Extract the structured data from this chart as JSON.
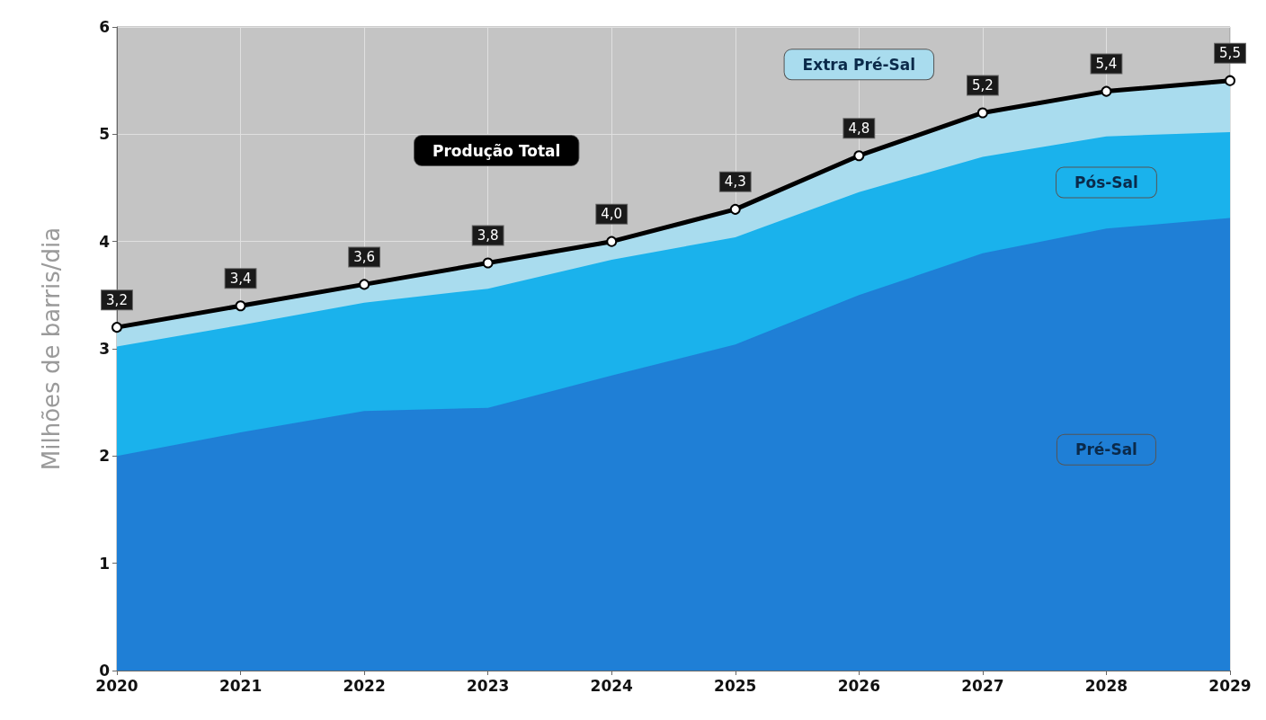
{
  "chart_data": {
    "type": "area",
    "ylabel": "Milhões de barris/dia",
    "categories": [
      "2020",
      "2021",
      "2022",
      "2023",
      "2024",
      "2025",
      "2026",
      "2027",
      "2028",
      "2029"
    ],
    "stacked": true,
    "ylim": [
      0,
      6
    ],
    "yticks": [
      0,
      1,
      2,
      3,
      4,
      5,
      6
    ],
    "grid": true,
    "legend": false,
    "series": [
      {
        "name": "Pré-Sal",
        "color": "#1f7fd6",
        "values": [
          2.0,
          2.22,
          2.42,
          2.45,
          2.75,
          3.04,
          3.5,
          3.89,
          4.12,
          4.22
        ]
      },
      {
        "name": "Pós-Sal",
        "color": "#1ab2ec",
        "values": [
          1.02,
          1.0,
          1.01,
          1.11,
          1.08,
          1.0,
          0.96,
          0.9,
          0.86,
          0.8
        ]
      },
      {
        "name": "Extra Pré-Sal",
        "color": "#a9dcee",
        "values": [
          0.18,
          0.18,
          0.17,
          0.24,
          0.17,
          0.26,
          0.34,
          0.41,
          0.42,
          0.48
        ]
      }
    ],
    "totals": [
      "3,2",
      "3,4",
      "3,6",
      "3,8",
      "4,0",
      "4,3",
      "4,8",
      "5,2",
      "5,4",
      "5,5"
    ],
    "annotations": [
      "Produção Total"
    ]
  }
}
